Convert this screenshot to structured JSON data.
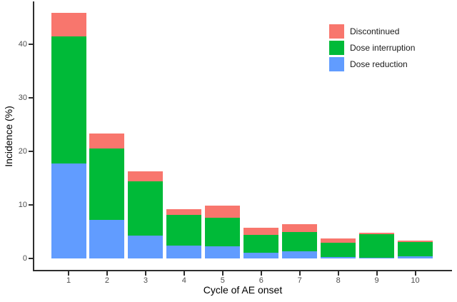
{
  "chart_data": {
    "type": "bar",
    "stacked": true,
    "xlabel": "Cycle of AE onset",
    "ylabel": "Incidence (%)",
    "categories": [
      "1",
      "2",
      "3",
      "4",
      "5",
      "6",
      "7",
      "8",
      "9",
      "10"
    ],
    "y_ticks": [
      0,
      10,
      20,
      30,
      40
    ],
    "ylim": [
      0,
      47
    ],
    "grid": false,
    "legend_position": "inside-top-right",
    "legend_order": [
      "Discontinued",
      "Dose interruption",
      "Dose reduction"
    ],
    "series": [
      {
        "name": "Dose reduction",
        "color": "#619CFF",
        "values": [
          17.8,
          7.2,
          4.3,
          2.4,
          2.3,
          1.1,
          1.3,
          0.3,
          0.2,
          0.4
        ]
      },
      {
        "name": "Dose interruption",
        "color": "#00BA38",
        "values": [
          23.7,
          13.3,
          10.1,
          5.7,
          5.3,
          3.3,
          3.7,
          2.7,
          4.4,
          2.7
        ]
      },
      {
        "name": "Discontinued",
        "color": "#F8766D",
        "values": [
          4.4,
          2.9,
          1.9,
          1.1,
          2.3,
          1.3,
          1.4,
          0.8,
          0.2,
          0.2
        ]
      }
    ]
  }
}
